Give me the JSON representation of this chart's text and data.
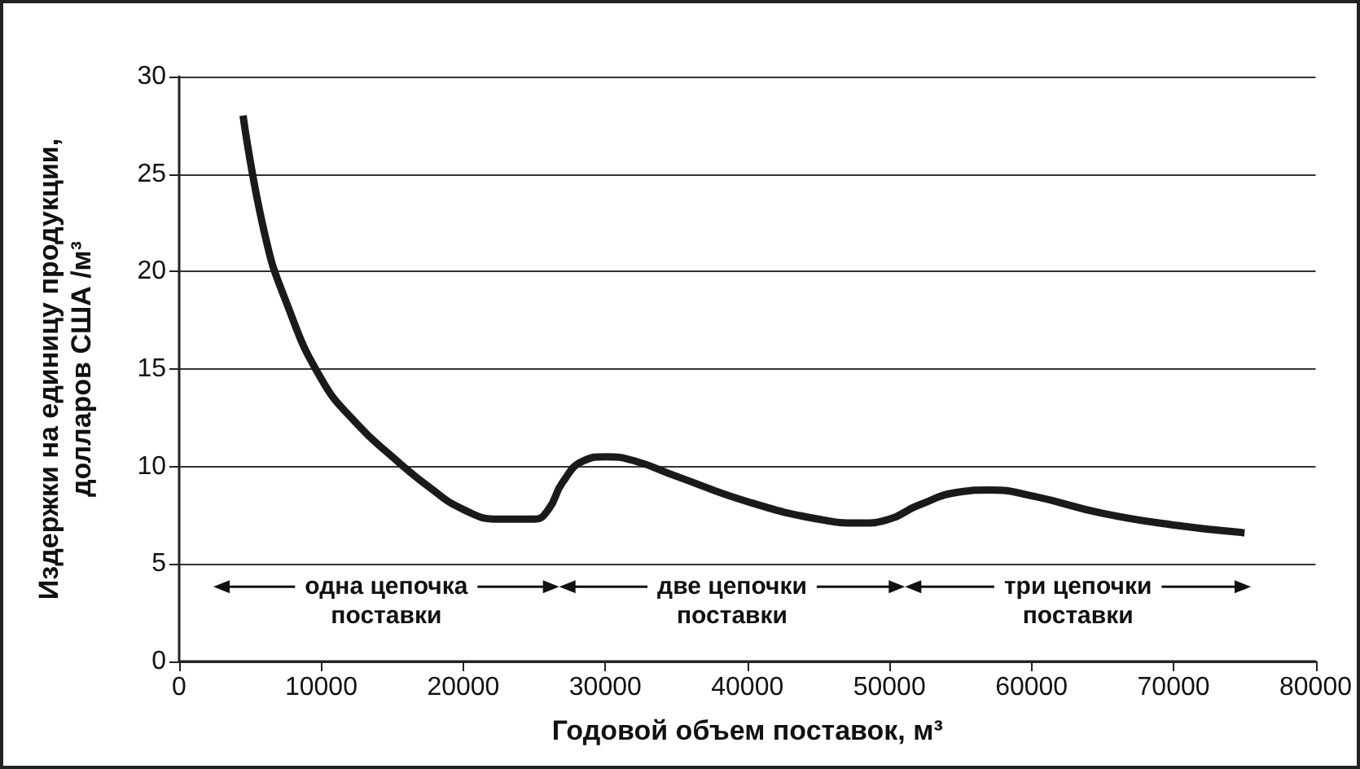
{
  "chart_data": {
    "type": "line",
    "xlabel": "Годовой объем поставок, м³",
    "ylabel": "Издержки на единицу продукции,\nдолларов США /м³",
    "x": [
      4500,
      6000,
      7500,
      10000,
      12500,
      15000,
      17500,
      20000,
      22500,
      25000,
      26000,
      27000,
      28500,
      30000,
      32000,
      35000,
      40000,
      45000,
      48000,
      50000,
      52000,
      55000,
      57000,
      60000,
      65000,
      70000,
      75000
    ],
    "series": [
      {
        "color": "#1a1a1a",
        "values": [
          28,
          22,
          18.5,
          14.5,
          12.2,
          10.5,
          9,
          7.8,
          7.3,
          7.3,
          7.8,
          9.2,
          10.3,
          10.5,
          10.3,
          9.5,
          8.2,
          7.3,
          7.1,
          7.3,
          8,
          8.7,
          8.8,
          8.5,
          7.6,
          7.0,
          6.6
        ]
      }
    ],
    "xlim": [
      0,
      80000
    ],
    "xticks": [
      0,
      10000,
      20000,
      30000,
      40000,
      50000,
      60000,
      70000,
      80000
    ],
    "ylim": [
      0,
      30
    ],
    "yticks": [
      0,
      5,
      10,
      15,
      20,
      25,
      30
    ],
    "grid": "y",
    "marker": "none",
    "line_style": "solid",
    "annotations": [
      "одна цепочка\nпоставки",
      "две цепочки\nпоставки",
      "три цепочки\nпоставки"
    ]
  }
}
